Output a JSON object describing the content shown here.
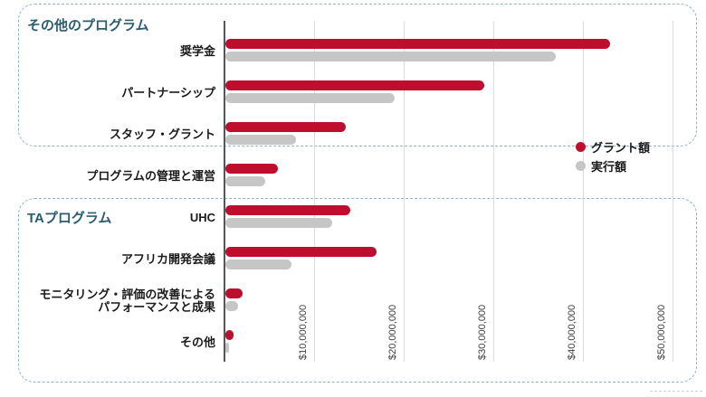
{
  "colors": {
    "grant_bar": "#BF0D2E",
    "exec_bar": "#C6C6C6",
    "group_label_text": "#2C5D6F",
    "group_box_border": "#8FB4C4",
    "gridline": "#DCDCDC",
    "axis_line": "#55565A",
    "tick_text": "#3F3F3F",
    "category_text": "#1A1A1A"
  },
  "legend": {
    "items": [
      {
        "label": "グラント額",
        "color": "#BF0D2E"
      },
      {
        "label": "実行額",
        "color": "#C6C6C6"
      }
    ]
  },
  "chart_data": {
    "type": "bar",
    "orientation": "horizontal",
    "title": "",
    "xlabel": "",
    "ylabel": "",
    "grid": true,
    "legend_position": "right-middle",
    "xlim": [
      0,
      52000000
    ],
    "categories": [
      "奨学金",
      "パートナーシップ",
      "スタッフ・グラント",
      "プログラムの管理と運営",
      "UHC",
      "アフリカ開発会議",
      "モニタリング・評価の改善による\nパフォーマンスと成果",
      "その他"
    ],
    "series": [
      {
        "name": "グラント額",
        "color": "#BF0D2E",
        "values": [
          43000000,
          29000000,
          13500000,
          6000000,
          14000000,
          17000000,
          2000000,
          1000000
        ]
      },
      {
        "name": "実行額",
        "color": "#C6C6C6",
        "values": [
          37000000,
          19000000,
          8000000,
          4500000,
          12000000,
          7500000,
          1500000,
          500000
        ]
      }
    ],
    "x_ticks": {
      "labels": [
        "$10,000,000",
        "$20,000,000",
        "$30,000,000",
        "$40,000,000",
        "$50,000,000"
      ],
      "values": [
        10000000,
        20000000,
        30000000,
        40000000,
        50000000
      ],
      "rotation": 90
    },
    "groups": [
      {
        "label": "その他のプログラム",
        "category_indexes": [
          0,
          1,
          2
        ]
      },
      {
        "label": "TAプログラム",
        "category_indexes": [
          4,
          5,
          6,
          7
        ]
      }
    ]
  }
}
